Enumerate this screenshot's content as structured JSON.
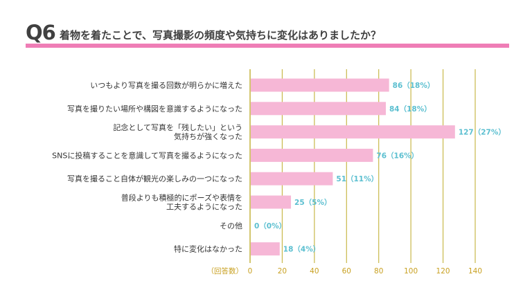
{
  "header": {
    "q_number": "Q6",
    "question": "着物を着たことで、写真撮影の頻度や気持ちに変化はありましたか？"
  },
  "colors": {
    "bar": "#f6b7d6",
    "title_rule": "#ef7db6",
    "value_label": "#5bbfd0",
    "gridline": "#c8b84a",
    "tick_label": "#c8a020"
  },
  "chart_data": {
    "type": "bar",
    "orientation": "horizontal",
    "categories": [
      [
        "いつもより写真を撮る回数が明らかに増えた"
      ],
      [
        "写真を撮りたい場所や構図を意識するようになった"
      ],
      [
        "記念として写真を「残したい」という",
        "気持ちが強くなった"
      ],
      [
        "SNSに投稿することを意識して写真を撮るようになった"
      ],
      [
        "写真を撮ること自体が観光の楽しみの一つになった"
      ],
      [
        "普段よりも積極的にポーズや表情を",
        "工夫するようになった"
      ],
      [
        "その他"
      ],
      [
        "特に変化はなかった"
      ]
    ],
    "values": [
      86,
      84,
      127,
      76,
      51,
      25,
      0,
      18
    ],
    "value_labels": [
      "86（18%）",
      "84（18%）",
      "127（27%）",
      "76（16%）",
      "51（11%）",
      "25（5%）",
      "0（0%）",
      "18（4%）"
    ],
    "xlim": [
      0,
      140
    ],
    "xticks": [
      0,
      20,
      40,
      60,
      80,
      100,
      120,
      140
    ],
    "xlabel": "（回答数）",
    "grid": true
  }
}
